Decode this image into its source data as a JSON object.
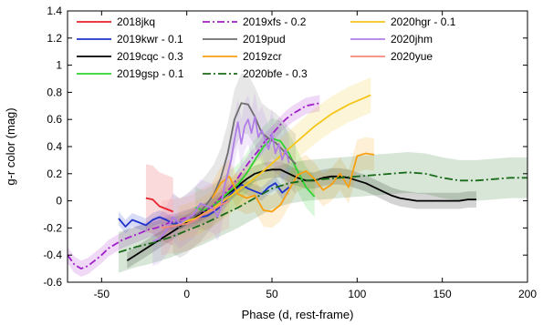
{
  "chart_data": {
    "type": "line",
    "title": "",
    "xlabel": "Phase (d, rest-frame)",
    "ylabel": "g-r color (mag)",
    "xlim": [
      -70,
      200
    ],
    "ylim": [
      -0.6,
      1.4
    ],
    "xticks": [
      -50,
      0,
      50,
      100,
      150,
      200
    ],
    "yticks": [
      -0.6,
      -0.4,
      -0.2,
      0,
      0.2,
      0.4,
      0.6,
      0.8,
      1,
      1.2,
      1.4
    ],
    "ytick_labels": [
      "-0.6",
      "-0.4",
      "-0.2",
      "0",
      "0.2",
      "0.4",
      "0.6",
      "0.8",
      "1",
      "1.2",
      "1.4"
    ],
    "grid": false,
    "legend_placement": "top, three columns",
    "series": [
      {
        "name": "2018jkq",
        "color": "#e8222a",
        "dash": "",
        "x": [
          -24,
          -20,
          -16,
          -12,
          -8
        ],
        "y": [
          0.02,
          0.01,
          -0.04,
          -0.06,
          -0.08
        ],
        "band": 0.25
      },
      {
        "name": "2019kwr - 0.1",
        "color": "#1f32c9",
        "dash": "",
        "x": [
          -40,
          -36,
          -32,
          -28,
          -24,
          -20,
          -16,
          -12,
          -8,
          -4,
          0,
          4,
          8,
          12,
          16,
          20,
          24,
          28,
          32,
          36,
          40,
          44,
          48,
          52,
          56,
          60
        ],
        "y": [
          -0.13,
          -0.19,
          -0.14,
          -0.16,
          -0.18,
          -0.14,
          -0.12,
          -0.14,
          -0.17,
          -0.16,
          -0.15,
          -0.14,
          -0.12,
          -0.11,
          -0.08,
          -0.04,
          0.02,
          0.08,
          0.12,
          0.09,
          0.07,
          0.05,
          0.1,
          0.13,
          0.06,
          0.1
        ],
        "band": 0.05
      },
      {
        "name": "2019cqc - 0.3",
        "color": "#000000",
        "dash": "",
        "x": [
          -35,
          -30,
          -25,
          -20,
          -15,
          -10,
          -5,
          0,
          5,
          10,
          15,
          20,
          25,
          30,
          35,
          40,
          45,
          50,
          55,
          60,
          65,
          70,
          75,
          80,
          85,
          90,
          95,
          100,
          105,
          110,
          115,
          120,
          125,
          130,
          135,
          140,
          145,
          150,
          155,
          160,
          165,
          170
        ],
        "y": [
          -0.44,
          -0.4,
          -0.36,
          -0.32,
          -0.28,
          -0.24,
          -0.2,
          -0.16,
          -0.12,
          -0.08,
          -0.04,
          0.01,
          0.06,
          0.11,
          0.16,
          0.2,
          0.22,
          0.23,
          0.23,
          0.2,
          0.17,
          0.15,
          0.15,
          0.17,
          0.18,
          0.18,
          0.17,
          0.15,
          0.13,
          0.1,
          0.07,
          0.04,
          0.02,
          0.01,
          0.0,
          0.0,
          0.0,
          0.0,
          0.0,
          0.0,
          0.01,
          0.01
        ],
        "band": 0.06
      },
      {
        "name": "2019gsp - 0.1",
        "color": "#2ed42e",
        "dash": "",
        "x": [
          5,
          10,
          15,
          20,
          25,
          30,
          35,
          40,
          45,
          50,
          55,
          60,
          65,
          70,
          75
        ],
        "y": [
          -0.05,
          -0.07,
          -0.04,
          0.01,
          0.07,
          0.12,
          0.2,
          0.3,
          0.4,
          0.46,
          0.44,
          0.35,
          0.22,
          0.1,
          0.03
        ],
        "band": 0.15
      },
      {
        "name": "2019xfs - 0.2",
        "color": "#a020c8",
        "dash": "8,3,2,3",
        "x": [
          -70,
          -66,
          -62,
          -58,
          -54,
          -50,
          -46,
          -42,
          -38,
          -34,
          -30,
          -26,
          -22,
          -18,
          -14,
          -10,
          -6,
          -2,
          2,
          6,
          10,
          14,
          18,
          22,
          26,
          30,
          34,
          38,
          42,
          46,
          50,
          54,
          58,
          62,
          66,
          70,
          74,
          78
        ],
        "y": [
          -0.4,
          -0.47,
          -0.5,
          -0.48,
          -0.44,
          -0.4,
          -0.35,
          -0.32,
          -0.29,
          -0.27,
          -0.25,
          -0.23,
          -0.21,
          -0.2,
          -0.18,
          -0.16,
          -0.15,
          -0.13,
          -0.12,
          -0.1,
          -0.08,
          -0.05,
          0.0,
          0.05,
          0.1,
          0.17,
          0.24,
          0.31,
          0.37,
          0.44,
          0.49,
          0.55,
          0.6,
          0.64,
          0.67,
          0.7,
          0.71,
          0.72
        ],
        "band": 0.06
      },
      {
        "name": "2019pud",
        "color": "#6e6e6e",
        "dash": "",
        "x": [
          -8,
          -4,
          0,
          4,
          8,
          12,
          16,
          20,
          24,
          28,
          32,
          36,
          40,
          44,
          48,
          52,
          56,
          60,
          64
        ],
        "y": [
          -0.17,
          -0.2,
          -0.17,
          -0.12,
          -0.08,
          -0.02,
          0.05,
          0.17,
          0.35,
          0.6,
          0.72,
          0.71,
          0.62,
          0.5,
          0.46,
          0.43,
          0.38,
          0.32,
          0.27
        ],
        "band": 0.22
      },
      {
        "name": "2019zcr",
        "color": "#f7a012",
        "dash": "",
        "x": [
          15,
          20,
          25,
          30,
          35,
          40,
          45,
          50,
          55,
          60,
          65,
          70,
          75,
          80,
          85,
          90,
          95,
          100,
          105,
          110
        ],
        "y": [
          0.02,
          0.13,
          0.18,
          0.05,
          0.02,
          0.04,
          -0.07,
          -0.08,
          -0.03,
          0.08,
          0.19,
          0.22,
          0.16,
          0.08,
          0.12,
          0.2,
          0.1,
          0.33,
          0.35,
          0.34
        ],
        "band": 0.12
      },
      {
        "name": "2020bfe - 0.3",
        "color": "#1a6b1a",
        "dash": "9,3,2,3",
        "x": [
          -40,
          -30,
          -20,
          -10,
          0,
          10,
          20,
          30,
          40,
          50,
          60,
          70,
          80,
          90,
          100,
          110,
          120,
          130,
          140,
          150,
          160,
          170,
          180,
          190,
          200
        ],
        "y": [
          -0.38,
          -0.34,
          -0.31,
          -0.27,
          -0.22,
          -0.17,
          -0.11,
          -0.05,
          0.02,
          0.09,
          0.13,
          0.15,
          0.16,
          0.17,
          0.18,
          0.19,
          0.2,
          0.21,
          0.2,
          0.17,
          0.15,
          0.15,
          0.16,
          0.17,
          0.17
        ],
        "band": 0.15
      },
      {
        "name": "2020hgr - 0.1",
        "color": "#f5c518",
        "dash": "",
        "x": [
          -5,
          5,
          15,
          25,
          35,
          45,
          55,
          65,
          75,
          85,
          95,
          108
        ],
        "y": [
          -0.17,
          -0.13,
          -0.06,
          0.03,
          0.12,
          0.22,
          0.33,
          0.44,
          0.55,
          0.64,
          0.71,
          0.78
        ],
        "band": 0.13
      },
      {
        "name": "2020jhm",
        "color": "#b07ee6",
        "dash": "",
        "x": [
          -20,
          -16,
          -12,
          -8,
          -4,
          0,
          4,
          8,
          12,
          16,
          18,
          20,
          22,
          24,
          26,
          28,
          30,
          32,
          34,
          36,
          38,
          40,
          42,
          44,
          46,
          48,
          50,
          52,
          54,
          56,
          58,
          60
        ],
        "y": [
          -0.3,
          -0.28,
          -0.22,
          -0.12,
          -0.17,
          -0.13,
          -0.1,
          -0.02,
          -0.04,
          -0.06,
          -0.12,
          -0.05,
          0.1,
          0.2,
          0.3,
          0.45,
          0.58,
          0.42,
          0.55,
          0.6,
          0.5,
          0.62,
          0.47,
          0.52,
          0.45,
          0.38,
          0.5,
          0.35,
          0.42,
          0.3,
          0.38,
          0.28
        ],
        "band": 0.18
      },
      {
        "name": "2020yue",
        "color": "#f28a7a",
        "dash": "",
        "x": [
          -15,
          -10,
          -5,
          0,
          5,
          10,
          15,
          20,
          25
        ],
        "y": [
          -0.2,
          -0.19,
          -0.18,
          -0.17,
          -0.14,
          -0.1,
          -0.07,
          -0.03,
          0.0
        ],
        "band": 0.2
      }
    ]
  }
}
